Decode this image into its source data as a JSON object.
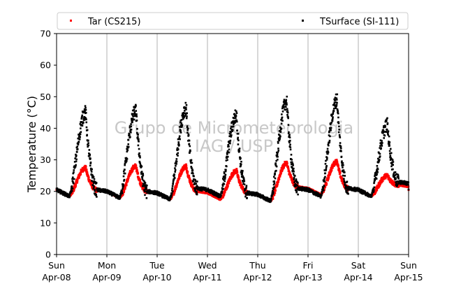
{
  "chart_data": {
    "type": "scatter",
    "title": "",
    "xlabel": "",
    "ylabel": "Temperature (°C)",
    "ylim": [
      0,
      70
    ],
    "yticks": [
      0,
      10,
      20,
      30,
      40,
      50,
      60,
      70
    ],
    "xlim": [
      0,
      7
    ],
    "xticks": [
      {
        "day": "Sun",
        "date": "Apr-08"
      },
      {
        "day": "Mon",
        "date": "Apr-09"
      },
      {
        "day": "Tue",
        "date": "Apr-10"
      },
      {
        "day": "Wed",
        "date": "Apr-11"
      },
      {
        "day": "Thu",
        "date": "Apr-12"
      },
      {
        "day": "Fri",
        "date": "Apr-13"
      },
      {
        "day": "Sat",
        "date": "Apr-14"
      },
      {
        "day": "Sun",
        "date": "Apr-15"
      }
    ],
    "grid": "vertical",
    "legend_position": "top",
    "watermark": [
      "Grupo de Micrometeorologia",
      "IAG / USP"
    ],
    "series": [
      {
        "name": "Tar (CS215)",
        "color": "#ff0000",
        "daily_peaks": [
          27.5,
          28,
          28,
          26.5,
          29,
          29.5,
          25
        ],
        "daily_minima": [
          18.5,
          18,
          17.5,
          17.5,
          17,
          19,
          18.5
        ],
        "end_value": 19.5
      },
      {
        "name": "TSurface (SI-111)",
        "color": "#000000",
        "daily_peaks": [
          45,
          45.5,
          46.5,
          44,
          48.5,
          49,
          41
        ],
        "daily_minima": [
          18.5,
          18,
          17.5,
          18.5,
          17,
          18.5,
          18.5
        ],
        "end_value": 20.5
      }
    ]
  }
}
